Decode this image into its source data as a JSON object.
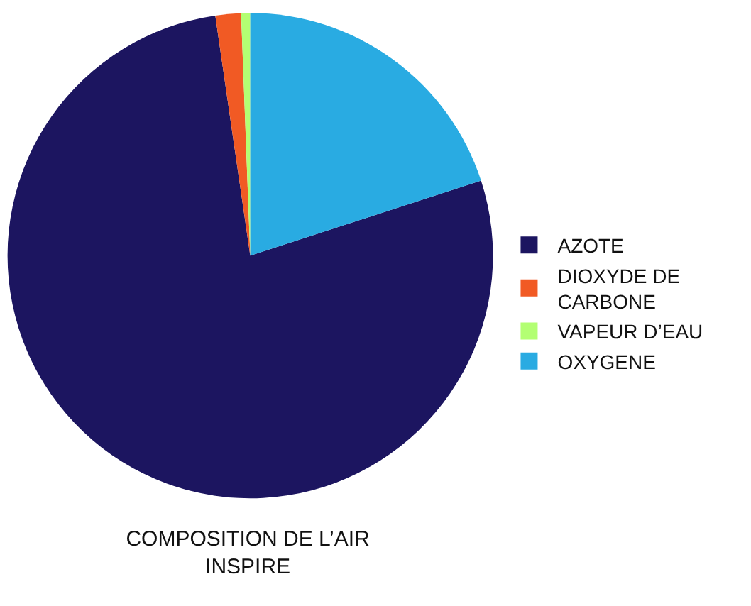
{
  "chart_data": {
    "type": "pie",
    "title": "COMPOSITION DE L’AIR\nINSPIRE",
    "categories": [
      "AZOTE",
      "DIOXYDE DE\nCARBONE",
      "VAPEUR D’EAU",
      "OXYGENE"
    ],
    "values": [
      77.7,
      1.7,
      0.6,
      20.0
    ],
    "colors": [
      "#1c1560",
      "#f15a24",
      "#b3ff73",
      "#29abe2"
    ],
    "legend": "right"
  }
}
